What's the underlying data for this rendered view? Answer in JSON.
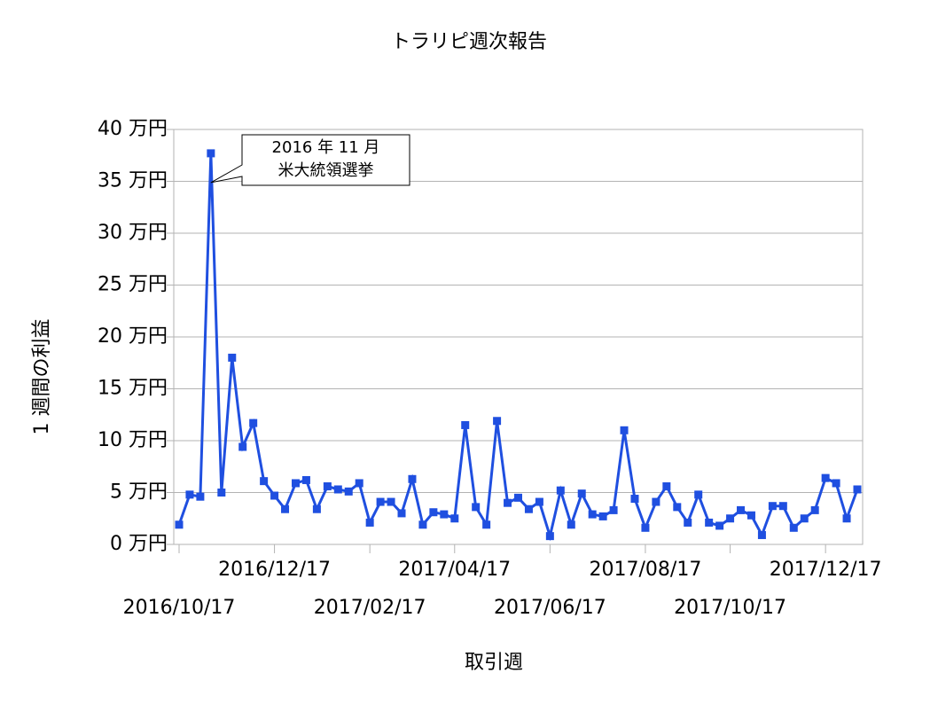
{
  "chart_data": {
    "type": "line",
    "title": "トラリピ週次報告",
    "x_label": "取引週",
    "y_label": "1 週間の利益",
    "categories": [
      "2016/10/17",
      null,
      null,
      null,
      null,
      null,
      null,
      null,
      null,
      "2016/12/17",
      null,
      null,
      null,
      null,
      null,
      null,
      null,
      null,
      "2017/02/17",
      null,
      null,
      null,
      null,
      null,
      null,
      null,
      "2017/04/17",
      null,
      null,
      null,
      null,
      null,
      null,
      null,
      null,
      "2017/06/17",
      null,
      null,
      null,
      null,
      null,
      null,
      null,
      null,
      "2017/08/17",
      null,
      null,
      null,
      null,
      null,
      null,
      null,
      "2017/10/17",
      null,
      null,
      null,
      null,
      null,
      null,
      null,
      null,
      "2017/12/17",
      null,
      null,
      null
    ],
    "series": [
      {
        "name": "1 週間の利益",
        "color": "#1f4fe0",
        "values": [
          1.9,
          4.8,
          4.6,
          37.7,
          5.0,
          18.0,
          9.4,
          11.7,
          6.1,
          4.7,
          3.4,
          5.9,
          6.2,
          3.4,
          5.6,
          5.3,
          5.1,
          5.9,
          2.1,
          4.1,
          4.1,
          3.0,
          6.3,
          1.9,
          3.1,
          2.9,
          2.5,
          11.5,
          3.6,
          1.9,
          11.9,
          4.0,
          4.5,
          3.4,
          4.1,
          0.8,
          5.2,
          1.9,
          4.9,
          2.9,
          2.7,
          3.3,
          11.0,
          4.4,
          1.6,
          4.1,
          5.6,
          3.6,
          2.1,
          4.8,
          2.1,
          1.8,
          2.5,
          3.3,
          2.8,
          0.9,
          3.7,
          3.7,
          1.6,
          2.5,
          3.3,
          6.4,
          5.9,
          2.5,
          5.3
        ]
      }
    ],
    "ylim": [
      0,
      40
    ],
    "yticks": [
      {
        "value": 0,
        "label": "0 万円"
      },
      {
        "value": 5,
        "label": "5 万円"
      },
      {
        "value": 10,
        "label": "10 万円"
      },
      {
        "value": 15,
        "label": "15 万円"
      },
      {
        "value": 20,
        "label": "20 万円"
      },
      {
        "value": 25,
        "label": "25 万円"
      },
      {
        "value": 30,
        "label": "30 万円"
      },
      {
        "value": 35,
        "label": "35 万円"
      },
      {
        "value": 40,
        "label": "40 万円"
      }
    ],
    "grid": true,
    "annotation": {
      "lines": [
        "2016 年 11 月",
        "米大統領選挙"
      ],
      "point": 3
    }
  }
}
